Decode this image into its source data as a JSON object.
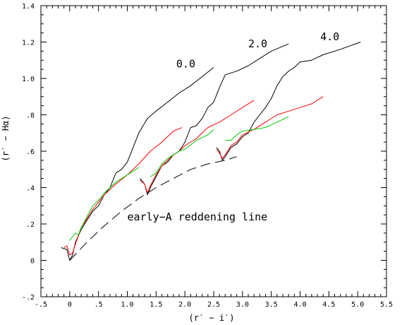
{
  "chart_data": {
    "type": "line",
    "xlabel": "(r′ − i′)",
    "ylabel": "(r′ − Hα)",
    "xlim": [
      -0.5,
      5.5
    ],
    "ylim": [
      -0.2,
      1.4
    ],
    "grid": false,
    "x_ticks": [
      {
        "value": -0.5,
        "label": "-.5"
      },
      {
        "value": 0,
        "label": "0"
      },
      {
        "value": 0.5,
        "label": ".5"
      },
      {
        "value": 1.0,
        "label": "1.0"
      },
      {
        "value": 1.5,
        "label": "1.5"
      },
      {
        "value": 2.0,
        "label": "2.0"
      },
      {
        "value": 2.5,
        "label": "2.5"
      },
      {
        "value": 3.0,
        "label": "3.0"
      },
      {
        "value": 3.5,
        "label": "3.5"
      },
      {
        "value": 4.0,
        "label": "4.0"
      },
      {
        "value": 4.5,
        "label": "4.5"
      },
      {
        "value": 5.0,
        "label": "5.0"
      },
      {
        "value": 5.5,
        "label": "5.5"
      }
    ],
    "y_ticks": [
      {
        "value": -0.2,
        "label": "-.2"
      },
      {
        "value": 0,
        "label": "0"
      },
      {
        "value": 0.2,
        "label": ".2"
      },
      {
        "value": 0.4,
        "label": ".4"
      },
      {
        "value": 0.6,
        "label": ".6"
      },
      {
        "value": 0.8,
        "label": ".8"
      },
      {
        "value": 1.0,
        "label": "1.0"
      },
      {
        "value": 1.2,
        "label": "1.2"
      },
      {
        "value": 1.4,
        "label": "1.4"
      }
    ],
    "annotations": [
      {
        "text": "0.0",
        "x": 1.85,
        "y": 1.06
      },
      {
        "text": "2.0",
        "x": 3.1,
        "y": 1.17
      },
      {
        "text": "4.0",
        "x": 4.35,
        "y": 1.21
      },
      {
        "text": "early−A reddening line",
        "x": 1.0,
        "y": 0.22
      }
    ],
    "series": [
      {
        "color": "#000000",
        "style": "solid",
        "points": [
          [
            -0.15,
            0.07
          ],
          [
            -0.05,
            0.06
          ],
          [
            0.0,
            0.0
          ],
          [
            0.05,
            0.03
          ],
          [
            0.1,
            0.1
          ],
          [
            0.2,
            0.17
          ],
          [
            0.3,
            0.22
          ],
          [
            0.4,
            0.27
          ],
          [
            0.5,
            0.3
          ],
          [
            0.6,
            0.36
          ],
          [
            0.7,
            0.4
          ],
          [
            0.8,
            0.48
          ],
          [
            0.9,
            0.5
          ],
          [
            1.0,
            0.54
          ],
          [
            1.1,
            0.62
          ],
          [
            1.2,
            0.7
          ],
          [
            1.35,
            0.78
          ],
          [
            1.5,
            0.82
          ],
          [
            1.7,
            0.87
          ],
          [
            1.9,
            0.92
          ],
          [
            2.1,
            0.96
          ],
          [
            2.3,
            1.01
          ],
          [
            2.5,
            1.06
          ]
        ]
      },
      {
        "color": "#000000",
        "style": "solid",
        "points": [
          [
            1.22,
            0.45
          ],
          [
            1.3,
            0.42
          ],
          [
            1.35,
            0.36
          ],
          [
            1.4,
            0.4
          ],
          [
            1.5,
            0.46
          ],
          [
            1.6,
            0.52
          ],
          [
            1.7,
            0.54
          ],
          [
            1.8,
            0.58
          ],
          [
            1.9,
            0.6
          ],
          [
            2.0,
            0.65
          ],
          [
            2.1,
            0.73
          ],
          [
            2.2,
            0.74
          ],
          [
            2.3,
            0.78
          ],
          [
            2.4,
            0.84
          ],
          [
            2.5,
            0.87
          ],
          [
            2.6,
            0.95
          ],
          [
            2.7,
            1.02
          ],
          [
            2.9,
            1.04
          ],
          [
            3.1,
            1.07
          ],
          [
            3.3,
            1.11
          ],
          [
            3.5,
            1.15
          ],
          [
            3.8,
            1.19
          ]
        ]
      },
      {
        "color": "#000000",
        "style": "solid",
        "points": [
          [
            2.55,
            0.62
          ],
          [
            2.6,
            0.6
          ],
          [
            2.65,
            0.55
          ],
          [
            2.7,
            0.57
          ],
          [
            2.8,
            0.62
          ],
          [
            2.9,
            0.64
          ],
          [
            3.0,
            0.68
          ],
          [
            3.1,
            0.7
          ],
          [
            3.2,
            0.76
          ],
          [
            3.3,
            0.8
          ],
          [
            3.4,
            0.84
          ],
          [
            3.5,
            0.89
          ],
          [
            3.6,
            0.96
          ],
          [
            3.7,
            1.01
          ],
          [
            3.8,
            1.04
          ],
          [
            3.9,
            1.06
          ],
          [
            4.0,
            1.09
          ],
          [
            4.2,
            1.1
          ],
          [
            4.4,
            1.13
          ],
          [
            4.7,
            1.16
          ],
          [
            5.05,
            1.2
          ]
        ]
      },
      {
        "color": "#ff0000",
        "style": "solid",
        "points": [
          [
            -0.1,
            0.07
          ],
          [
            -0.05,
            0.08
          ],
          [
            0.0,
            0.03
          ],
          [
            0.05,
            0.04
          ],
          [
            0.1,
            0.09
          ],
          [
            0.2,
            0.18
          ],
          [
            0.3,
            0.23
          ],
          [
            0.4,
            0.28
          ],
          [
            0.5,
            0.32
          ],
          [
            0.6,
            0.36
          ],
          [
            0.8,
            0.42
          ],
          [
            1.0,
            0.47
          ],
          [
            1.2,
            0.53
          ],
          [
            1.4,
            0.6
          ],
          [
            1.6,
            0.65
          ],
          [
            1.8,
            0.71
          ],
          [
            1.95,
            0.73
          ]
        ]
      },
      {
        "color": "#ff0000",
        "style": "solid",
        "points": [
          [
            1.22,
            0.44
          ],
          [
            1.3,
            0.42
          ],
          [
            1.35,
            0.37
          ],
          [
            1.4,
            0.41
          ],
          [
            1.5,
            0.47
          ],
          [
            1.6,
            0.52
          ],
          [
            1.7,
            0.55
          ],
          [
            1.8,
            0.58
          ],
          [
            1.9,
            0.6
          ],
          [
            2.0,
            0.63
          ],
          [
            2.2,
            0.67
          ],
          [
            2.4,
            0.73
          ],
          [
            2.6,
            0.76
          ],
          [
            2.8,
            0.8
          ],
          [
            3.0,
            0.84
          ],
          [
            3.2,
            0.88
          ]
        ]
      },
      {
        "color": "#ff0000",
        "style": "solid",
        "points": [
          [
            2.55,
            0.61
          ],
          [
            2.6,
            0.59
          ],
          [
            2.65,
            0.56
          ],
          [
            2.7,
            0.58
          ],
          [
            2.8,
            0.63
          ],
          [
            2.9,
            0.65
          ],
          [
            3.0,
            0.69
          ],
          [
            3.2,
            0.72
          ],
          [
            3.4,
            0.76
          ],
          [
            3.6,
            0.8
          ],
          [
            3.8,
            0.82
          ],
          [
            4.0,
            0.84
          ],
          [
            4.2,
            0.86
          ],
          [
            4.4,
            0.9
          ]
        ]
      },
      {
        "color": "#00cc00",
        "style": "solid",
        "points": [
          [
            0.0,
            0.11
          ],
          [
            0.05,
            0.13
          ],
          [
            0.1,
            0.15
          ],
          [
            0.15,
            0.14
          ],
          [
            0.2,
            0.18
          ],
          [
            0.3,
            0.24
          ],
          [
            0.4,
            0.3
          ],
          [
            0.5,
            0.33
          ],
          [
            0.6,
            0.37
          ],
          [
            0.7,
            0.4
          ],
          [
            0.8,
            0.43
          ],
          [
            1.0,
            0.47
          ],
          [
            1.2,
            0.51
          ]
        ]
      },
      {
        "color": "#00cc00",
        "style": "solid",
        "points": [
          [
            1.4,
            0.46
          ],
          [
            1.5,
            0.48
          ],
          [
            1.6,
            0.53
          ],
          [
            1.7,
            0.56
          ],
          [
            1.8,
            0.58
          ],
          [
            1.9,
            0.6
          ],
          [
            2.0,
            0.61
          ],
          [
            2.2,
            0.66
          ],
          [
            2.4,
            0.69
          ],
          [
            2.5,
            0.72
          ]
        ]
      },
      {
        "color": "#00cc00",
        "style": "solid",
        "points": [
          [
            2.7,
            0.66
          ],
          [
            2.8,
            0.66
          ],
          [
            2.9,
            0.69
          ],
          [
            3.0,
            0.71
          ],
          [
            3.2,
            0.72
          ],
          [
            3.4,
            0.73
          ],
          [
            3.6,
            0.76
          ],
          [
            3.8,
            0.79
          ]
        ]
      },
      {
        "color": "#000000",
        "style": "dashed",
        "points": [
          [
            0.0,
            0.0
          ],
          [
            0.3,
            0.1
          ],
          [
            0.6,
            0.19
          ],
          [
            0.9,
            0.27
          ],
          [
            1.2,
            0.34
          ],
          [
            1.5,
            0.4
          ],
          [
            1.8,
            0.45
          ],
          [
            2.1,
            0.5
          ],
          [
            2.4,
            0.53
          ],
          [
            2.7,
            0.55
          ],
          [
            2.9,
            0.57
          ]
        ]
      }
    ]
  }
}
